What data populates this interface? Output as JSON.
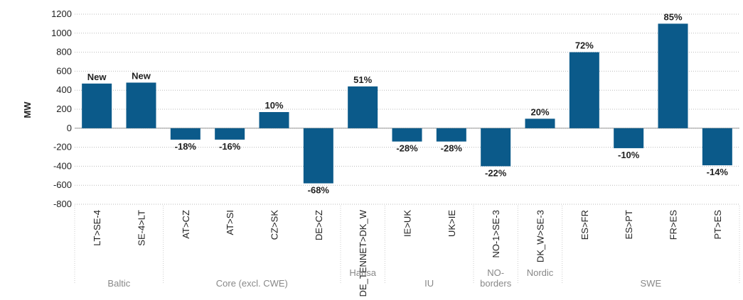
{
  "chart_data": {
    "type": "bar",
    "y_label": "MW",
    "color": "#0b5a8a",
    "grid": true,
    "ylim": [
      -800,
      1200
    ],
    "yticks": [
      -800,
      -600,
      -400,
      -200,
      0,
      200,
      400,
      600,
      800,
      1000,
      1200
    ],
    "groups": [
      {
        "name": "Baltic",
        "categories": [
          "LT>SE-4",
          "SE-4>LT"
        ],
        "values": [
          470,
          480
        ],
        "labels": [
          "New",
          "New"
        ]
      },
      {
        "name": "Core (excl. CWE)",
        "categories": [
          "AT>CZ",
          "AT>SI",
          "CZ>SK",
          "DE>CZ"
        ],
        "values": [
          -120,
          -120,
          170,
          -580
        ],
        "labels": [
          "-18%",
          "-16%",
          "10%",
          "-68%"
        ]
      },
      {
        "name": "Hansa",
        "categories": [
          "DE_TENNET>DK_W"
        ],
        "values": [
          440
        ],
        "labels": [
          "51%"
        ]
      },
      {
        "name": "IU",
        "categories": [
          "IE>UK",
          "UK>IE"
        ],
        "values": [
          -140,
          -140
        ],
        "labels": [
          "-28%",
          "-28%"
        ]
      },
      {
        "name": "NO-borders",
        "categories": [
          "NO-1>SE-3"
        ],
        "values": [
          -400
        ],
        "labels": [
          "-22%"
        ]
      },
      {
        "name": "Nordic",
        "categories": [
          "DK_W>SE-3"
        ],
        "values": [
          100
        ],
        "labels": [
          "20%"
        ]
      },
      {
        "name": "SWE",
        "categories": [
          "ES>FR",
          "ES>PT",
          "FR>ES",
          "PT>ES"
        ],
        "values": [
          800,
          -210,
          1100,
          -390
        ],
        "labels": [
          "72%",
          "-10%",
          "85%",
          "-14%"
        ]
      }
    ]
  }
}
